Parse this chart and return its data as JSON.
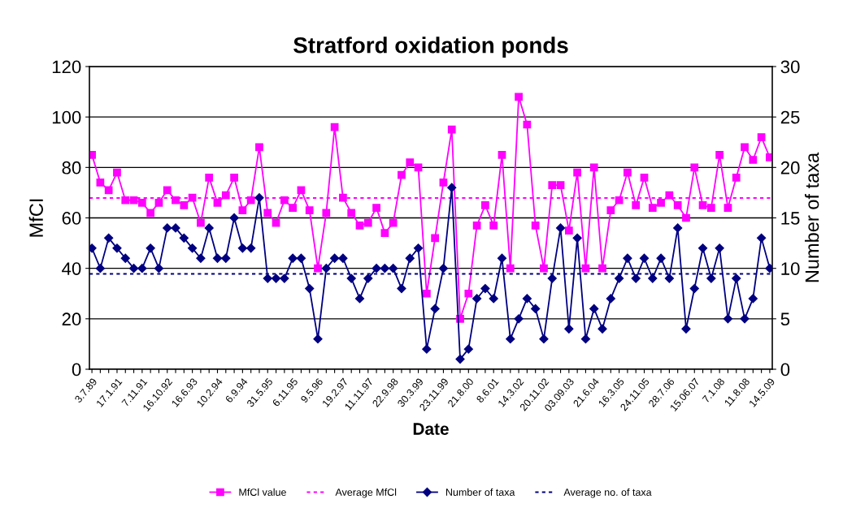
{
  "chart_data": {
    "type": "line",
    "title": "Stratford oxidation ponds",
    "xlabel": "Date",
    "ylabel": "MfCI",
    "y2label": "Number of taxa",
    "categories": [
      "3.7.89",
      null,
      null,
      "17.1.91",
      null,
      null,
      "7.11.91",
      null,
      null,
      "16.10.92",
      null,
      null,
      "16.6.93",
      null,
      null,
      "10.2.94",
      null,
      null,
      "6.9.94",
      null,
      null,
      "31.5.95",
      null,
      null,
      "6.11.95",
      null,
      null,
      "9.5.96",
      null,
      null,
      "19.2.97",
      null,
      null,
      "11.11.97",
      null,
      null,
      "22.9.98",
      null,
      null,
      "30.3.99",
      null,
      null,
      "23.11.99",
      null,
      null,
      "21.8.00",
      null,
      null,
      "8.6.01",
      null,
      null,
      "14.3.02",
      null,
      null,
      "20.11.02",
      null,
      null,
      "03.09.03",
      null,
      null,
      "21.6.04",
      null,
      null,
      "16.3.05",
      null,
      null,
      "24.11.05",
      null,
      null,
      "28.7.06",
      null,
      null,
      "15.06.07",
      null,
      null,
      "7.1.08",
      null,
      null,
      "11.8.08",
      null,
      null,
      "14.5.09"
    ],
    "series": [
      {
        "name": "MfCl value",
        "color": "#ff00ff",
        "marker": "square",
        "values": [
          85,
          74,
          71,
          78,
          67,
          67,
          66,
          62,
          66,
          71,
          67,
          65,
          68,
          58,
          76,
          66,
          69,
          76,
          63,
          67,
          88,
          62,
          58,
          67,
          64,
          71,
          63,
          40,
          62,
          96,
          68,
          62,
          57,
          58,
          64,
          54,
          58,
          77,
          82,
          80,
          30,
          52,
          74,
          95,
          20,
          30,
          57,
          65,
          57,
          85,
          40,
          108,
          97,
          57,
          40,
          73,
          73,
          55,
          78,
          40,
          80,
          40,
          63,
          67,
          78,
          65,
          76,
          64,
          66,
          69,
          65,
          60,
          80,
          65,
          64,
          85,
          64,
          76,
          88,
          83,
          92,
          84
        ]
      },
      {
        "name": "Number of taxa",
        "color": "#000080",
        "marker": "diamond",
        "axis": "y2",
        "values": [
          12,
          10,
          13,
          12,
          11,
          10,
          10,
          12,
          10,
          14,
          14,
          13,
          12,
          11,
          14,
          11,
          11,
          15,
          12,
          12,
          17,
          9,
          9,
          9,
          11,
          11,
          8,
          3,
          10,
          11,
          11,
          9,
          7,
          9,
          10,
          10,
          10,
          8,
          11,
          12,
          2,
          6,
          10,
          18,
          1,
          2,
          7,
          8,
          7,
          11,
          3,
          5,
          7,
          6,
          3,
          9,
          14,
          4,
          13,
          3,
          6,
          4,
          7,
          9,
          11,
          9,
          11,
          9,
          11,
          9,
          14,
          4,
          8,
          12,
          9,
          12,
          5,
          9,
          5,
          7,
          13,
          10
        ]
      }
    ],
    "ref_lines": [
      {
        "axis": "y",
        "value": 67.9,
        "label": "Average MfCl",
        "color": "#ff00ff",
        "line_style": "dotted"
      },
      {
        "axis": "y2",
        "value": 9.45,
        "label": "Average no. of taxa",
        "color": "#000080",
        "line_style": "dotted"
      }
    ],
    "ylim": [
      0,
      120
    ],
    "yticks": [
      0,
      20,
      40,
      60,
      80,
      100,
      120
    ],
    "y2lim": [
      0,
      30
    ],
    "y2ticks": [
      0,
      5,
      10,
      15,
      20,
      25,
      30
    ],
    "grid": "y",
    "legend": "bottom",
    "line_style": "solid"
  }
}
